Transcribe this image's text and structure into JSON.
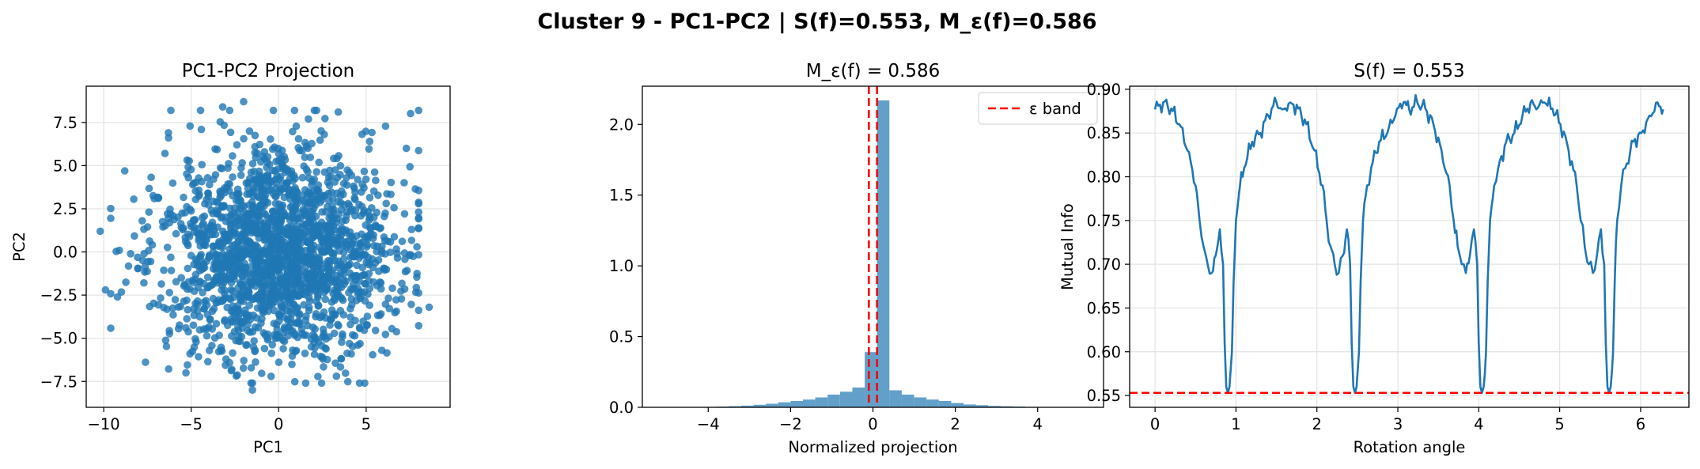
{
  "figure": {
    "suptitle": "Cluster 9 - PC1-PC2 | S(f)=0.553, M_ε(f)=0.586"
  },
  "colors": {
    "primary": "#1f77b4",
    "reference": "#ff0000"
  },
  "chart_data": [
    {
      "type": "scatter",
      "title": "PC1-PC2 Projection",
      "xlabel": "PC1",
      "ylabel": "PC2",
      "xlim": [
        -11,
        9.8
      ],
      "ylim": [
        -9,
        9.6
      ],
      "xticks": [
        -10,
        -5,
        0,
        5
      ],
      "xticklabels": [
        "−10",
        "−5",
        "0",
        "5"
      ],
      "yticks": [
        -7.5,
        -5,
        -2.5,
        0,
        2.5,
        5,
        7.5
      ],
      "yticklabels": [
        "−7.5",
        "−5.0",
        "−2.5",
        "0.0",
        "2.5",
        "5.0",
        "7.5"
      ],
      "grid": true,
      "legend": null,
      "series": [
        {
          "distribution": "roughly isotropic cloud of ~2000 points centered near (0, 0), spread from about −10.2 to 8.6 on PC1 and −8.0 to 8.7 on PC2",
          "n_points": 2000,
          "center": [
            0,
            0
          ],
          "std": [
            3.3,
            3.0
          ],
          "extreme_points": [
            {
              "x": -10.2,
              "y": 1.2
            },
            {
              "x": -9.9,
              "y": -2.2
            },
            {
              "x": -2.0,
              "y": 8.7
            },
            {
              "x": -3.2,
              "y": 8.4
            },
            {
              "x": -1.5,
              "y": -8.0
            },
            {
              "x": 8.6,
              "y": -3.2
            },
            {
              "x": 7.6,
              "y": 1.3
            },
            {
              "x": 7.3,
              "y": 6.0
            },
            {
              "x": 5.9,
              "y": -5.7
            },
            {
              "x": -6.3,
              "y": 6.9
            },
            {
              "x": -5.3,
              "y": -7.0
            },
            {
              "x": 1.7,
              "y": 7.7
            },
            {
              "x": 5.2,
              "y": 6.4
            },
            {
              "x": -8.8,
              "y": 4.7
            },
            {
              "x": 3.3,
              "y": -7.2
            }
          ]
        }
      ]
    },
    {
      "type": "bar",
      "title": "M_ε(f) = 0.586",
      "xlabel": "Normalized projection",
      "ylabel": "",
      "xlim": [
        -5.6,
        5.6
      ],
      "ylim": [
        0,
        2.27
      ],
      "xticks": [
        -4,
        -2,
        0,
        2,
        4
      ],
      "xticklabels": [
        "−4",
        "−2",
        "0",
        "2",
        "4"
      ],
      "yticks": [
        0,
        0.5,
        1.0,
        1.5,
        2.0
      ],
      "yticklabels": [
        "0.0",
        "0.5",
        "1.0",
        "1.5",
        "2.0"
      ],
      "grid": false,
      "legend": {
        "position": "top-right",
        "entries": [
          "ε band"
        ]
      },
      "bins": {
        "left": [
          -4.4,
          -4.1,
          -3.8,
          -3.5,
          -3.2,
          -2.9,
          -2.6,
          -2.3,
          -2.0,
          -1.7,
          -1.4,
          -1.1,
          -0.8,
          -0.5,
          -0.2,
          0.1,
          0.4,
          0.7,
          1.0,
          1.3,
          1.6,
          1.9,
          2.2,
          2.5,
          2.8,
          3.1,
          3.4,
          3.7,
          4.0,
          4.3
        ],
        "width": 0.3,
        "heights": [
          0.002,
          0.003,
          0.005,
          0.008,
          0.012,
          0.018,
          0.025,
          0.035,
          0.045,
          0.055,
          0.07,
          0.09,
          0.11,
          0.14,
          0.39,
          2.17,
          0.12,
          0.09,
          0.07,
          0.055,
          0.045,
          0.03,
          0.02,
          0.015,
          0.01,
          0.007,
          0.005,
          0.003,
          0.002,
          0.001
        ]
      },
      "reference_lines": [
        {
          "axis": "x",
          "value": -0.1,
          "style": "dashed",
          "color": "#ff0000",
          "name": "ε band"
        },
        {
          "axis": "x",
          "value": 0.1,
          "style": "dashed",
          "color": "#ff0000"
        }
      ]
    },
    {
      "type": "line",
      "title": "S(f) = 0.553",
      "xlabel": "Rotation angle",
      "ylabel": "Mutual Info",
      "xlim": [
        -0.314,
        6.597
      ],
      "ylim": [
        0.5365,
        0.9035
      ],
      "xticks": [
        0,
        1,
        2,
        3,
        4,
        5,
        6
      ],
      "xticklabels": [
        "0",
        "1",
        "2",
        "3",
        "4",
        "5",
        "6"
      ],
      "yticks": [
        0.55,
        0.6,
        0.65,
        0.7,
        0.75,
        0.8,
        0.85,
        0.9
      ],
      "yticklabels": [
        "0.55",
        "0.60",
        "0.65",
        "0.70",
        "0.75",
        "0.80",
        "0.85",
        "0.90"
      ],
      "grid": true,
      "legend": null,
      "period": 1.5708,
      "series": [
        {
          "description": "periodic curve with period π/2 (four cycles over 0 to 2π); peaks ~0.89, deep minima ~0.553 near 0.9, 2.47, 4.04, 5.61",
          "x": [
            0.0,
            0.1,
            0.2,
            0.3,
            0.4,
            0.5,
            0.55,
            0.6,
            0.65,
            0.7,
            0.75,
            0.8,
            0.84,
            0.86,
            0.88,
            0.9,
            0.92,
            0.95,
            0.97,
            1.0,
            1.05,
            1.1,
            1.2,
            1.3,
            1.4,
            1.5,
            1.57,
            1.67,
            1.77,
            1.87,
            1.97,
            2.07,
            2.12,
            2.17,
            2.22,
            2.27,
            2.32,
            2.37,
            2.41,
            2.43,
            2.45,
            2.47,
            2.49,
            2.52,
            2.54,
            2.57,
            2.62,
            2.67,
            2.77,
            2.87,
            2.97,
            3.07,
            3.14,
            3.24,
            3.34,
            3.44,
            3.54,
            3.64,
            3.69,
            3.74,
            3.79,
            3.84,
            3.89,
            3.94,
            3.98,
            4.0,
            4.02,
            4.04,
            4.06,
            4.09,
            4.11,
            4.14,
            4.19,
            4.24,
            4.34,
            4.44,
            4.54,
            4.64,
            4.71,
            4.81,
            4.91,
            5.01,
            5.11,
            5.21,
            5.26,
            5.31,
            5.36,
            5.41,
            5.46,
            5.51,
            5.55,
            5.57,
            5.59,
            5.61,
            5.63,
            5.66,
            5.68,
            5.71,
            5.76,
            5.81,
            5.91,
            6.01,
            6.11,
            6.21,
            6.28
          ],
          "y": [
            0.877,
            0.885,
            0.878,
            0.86,
            0.83,
            0.79,
            0.75,
            0.72,
            0.7,
            0.69,
            0.71,
            0.74,
            0.7,
            0.61,
            0.56,
            0.553,
            0.56,
            0.6,
            0.68,
            0.75,
            0.79,
            0.81,
            0.84,
            0.85,
            0.87,
            0.885,
            0.877,
            0.885,
            0.878,
            0.86,
            0.83,
            0.79,
            0.75,
            0.72,
            0.7,
            0.69,
            0.71,
            0.74,
            0.7,
            0.61,
            0.56,
            0.553,
            0.56,
            0.6,
            0.68,
            0.75,
            0.79,
            0.81,
            0.84,
            0.85,
            0.87,
            0.885,
            0.877,
            0.885,
            0.878,
            0.86,
            0.83,
            0.79,
            0.75,
            0.72,
            0.7,
            0.69,
            0.71,
            0.74,
            0.7,
            0.61,
            0.56,
            0.553,
            0.56,
            0.6,
            0.68,
            0.75,
            0.79,
            0.81,
            0.84,
            0.85,
            0.87,
            0.885,
            0.877,
            0.885,
            0.878,
            0.86,
            0.83,
            0.79,
            0.75,
            0.72,
            0.7,
            0.69,
            0.71,
            0.74,
            0.7,
            0.61,
            0.56,
            0.553,
            0.56,
            0.6,
            0.68,
            0.75,
            0.79,
            0.81,
            0.84,
            0.85,
            0.87,
            0.885,
            0.877
          ]
        }
      ],
      "reference_lines": [
        {
          "axis": "y",
          "value": 0.553,
          "style": "dashed",
          "color": "#ff0000"
        }
      ]
    }
  ]
}
